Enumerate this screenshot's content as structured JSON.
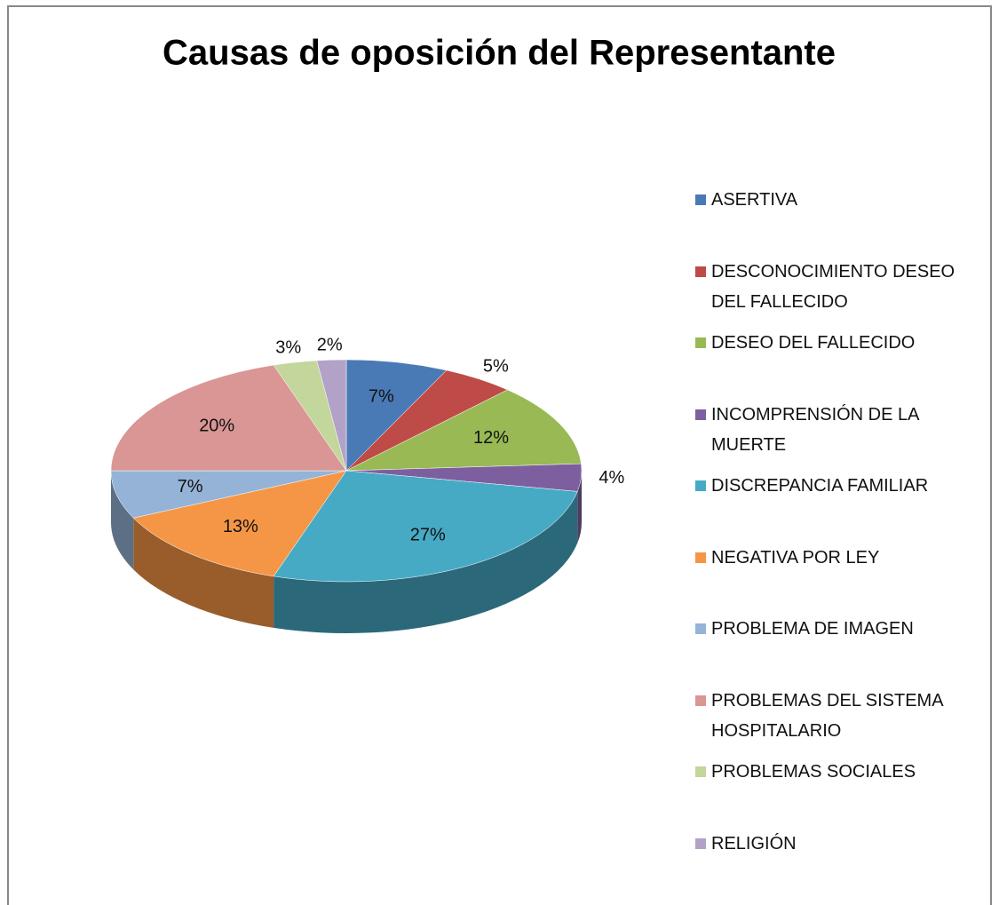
{
  "chart_data": {
    "type": "pie",
    "title": "Causas de oposición del Representante",
    "categories": [
      "ASERTIVA",
      "DESCONOCIMIENTO DESEO DEL FALLECIDO",
      "DESEO DEL FALLECIDO",
      "INCOMPRENSIÓN DE LA MUERTE",
      "DISCREPANCIA FAMILIAR",
      "NEGATIVA POR LEY",
      "PROBLEMA DE IMAGEN",
      "PROBLEMAS DEL SISTEMA HOSPITALARIO",
      "PROBLEMAS SOCIALES",
      "RELIGIÓN"
    ],
    "values": [
      7,
      5,
      12,
      4,
      27,
      13,
      7,
      20,
      3,
      2
    ],
    "value_labels": [
      "7%",
      "5%",
      "12%",
      "4%",
      "27%",
      "13%",
      "7%",
      "20%",
      "3%",
      "2%"
    ],
    "colors": [
      "#4a7ab5",
      "#be4b48",
      "#98b954",
      "#7d5fa0",
      "#46aac5",
      "#f59646",
      "#95b3d7",
      "#d99694",
      "#c3d69b",
      "#b3a2c7"
    ],
    "legend": "right"
  }
}
